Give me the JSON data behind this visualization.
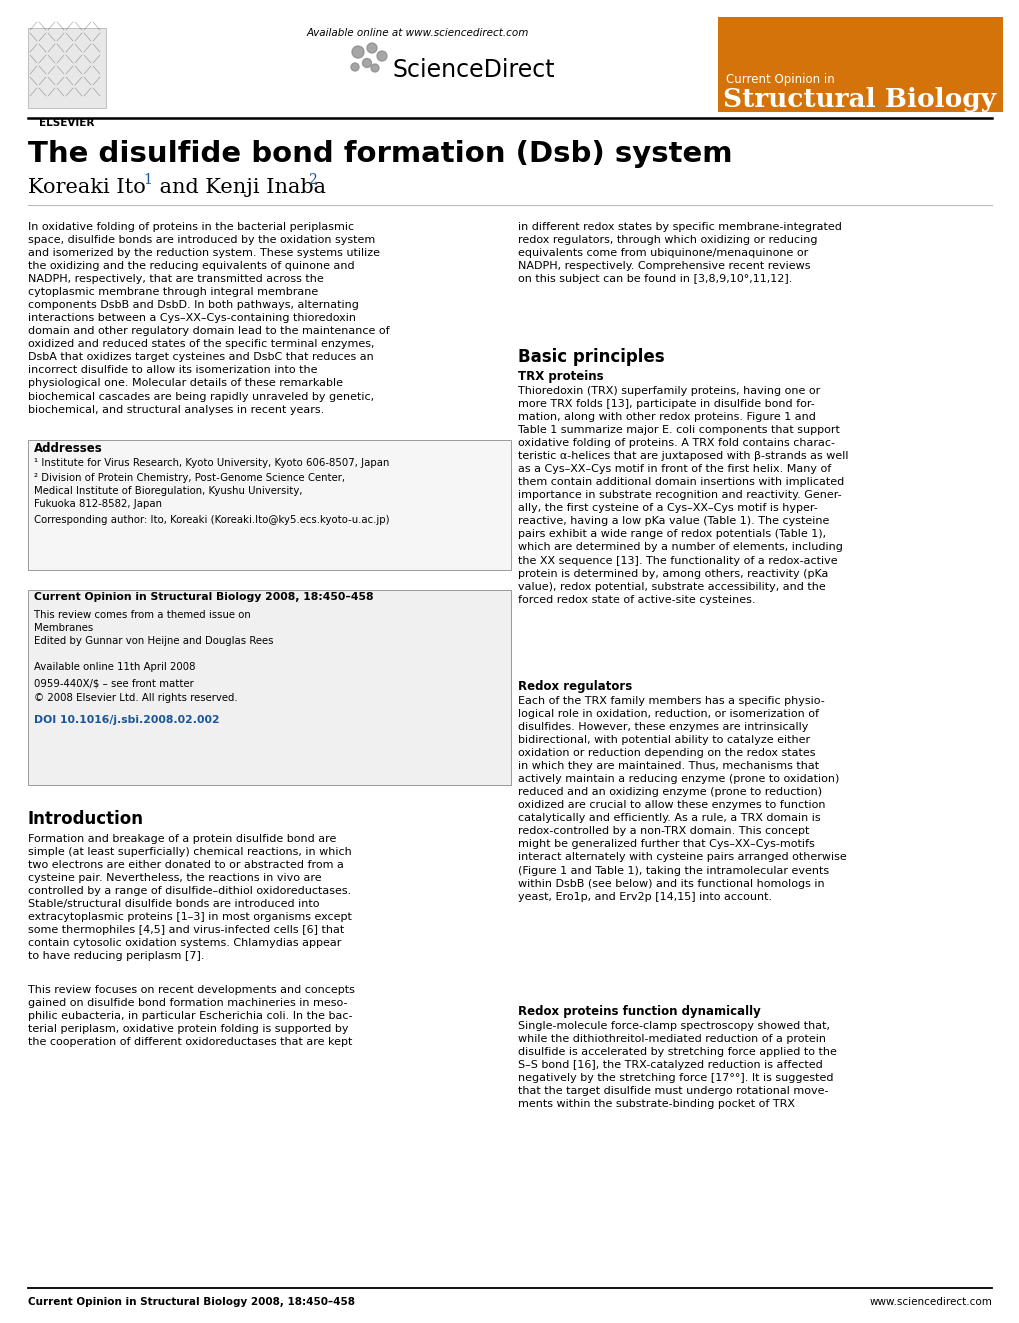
{
  "title": "The disulfide bond formation (Dsb) system",
  "authors": "Koreaki Ito  and Kenji Inaba",
  "bg_color": "#ffffff",
  "orange_color": "#d4730a",
  "journal_title_small": "Current Opinion in",
  "journal_title_large": "Structural Biology",
  "available_online": "Available online at www.sciencedirect.com",
  "elsevier_text": "ELSEVIER",
  "sciencedirect_text": "•ScienceDirect",
  "footer_left": "Current Opinion in Structural Biology 2008, 18:450–458",
  "footer_right": "www.sciencedirect.com",
  "abstract_text": "In oxidative folding of proteins in the bacterial periplasmic\nspace, disulfide bonds are introduced by the oxidation system\nand isomerized by the reduction system. These systems utilize\nthe oxidizing and the reducing equivalents of quinone and\nNADPH, respectively, that are transmitted across the\ncytoplasmic membrane through integral membrane\ncomponents DsbB and DsbD. In both pathways, alternating\ninteractions between a Cys–XX–Cys-containing thioredoxin\ndomain and other regulatory domain lead to the maintenance of\noxidized and reduced states of the specific terminal enzymes,\nDsbA that oxidizes target cysteines and DsbC that reduces an\nincorrect disulfide to allow its isomerization into the\nphysiological one. Molecular details of these remarkable\nbiochemical cascades are being rapidly unraveled by genetic,\nbiochemical, and structural analyses in recent years.",
  "right_col_intro": "in different redox states by specific membrane-integrated\nredox regulators, through which oxidizing or reducing\nequivalents come from ubiquinone/menaquinone or\nNADPH, respectively. Comprehensive recent reviews\non this subject can be found in [3,8,9,10°,11,12].",
  "addresses_header": "Addresses",
  "address1": "¹ Institute for Virus Research, Kyoto University, Kyoto 606-8507, Japan",
  "address2": "² Division of Protein Chemistry, Post-Genome Science Center,\nMedical Institute of Bioregulation, Kyushu University,\nFukuoka 812-8582, Japan",
  "corresponding": "Corresponding author: Ito, Koreaki (Koreaki.Ito@ky5.ecs.kyoto-u.ac.jp)",
  "info_box_line1": "Current Opinion in Structural Biology 2008, 18:450–458",
  "info_box_line2": "This review comes from a themed issue on\nMembranes\nEdited by Gunnar von Heijne and Douglas Rees",
  "info_box_line3": "Available online 11th April 2008",
  "info_box_line4": "0959-440X/$ – see front matter",
  "info_box_line5": "© 2008 Elsevier Ltd. All rights reserved.",
  "info_box_doi": "DOI 10.1016/j.sbi.2008.02.002",
  "intro_header": "Introduction",
  "intro_text": "Formation and breakage of a protein disulfide bond are\nsimple (at least superficially) chemical reactions, in which\ntwo electrons are either donated to or abstracted from a\ncysteine pair. Nevertheless, the reactions in vivo are\ncontrolled by a range of disulfide–dithiol oxidoreductases.\nStable/structural disulfide bonds are introduced into\nextracytoplasmic proteins [1–3] in most organisms except\nsome thermophiles [4,5] and virus-infected cells [6] that\ncontain cytosolic oxidation systems. Chlamydias appear\nto have reducing periplasm [7].",
  "intro_text2": "This review focuses on recent developments and concepts\ngained on disulfide bond formation machineries in meso-\nphilic eubacteria, in particular Escherichia coli. In the bac-\nterial periplasm, oxidative protein folding is supported by\nthe cooperation of different oxidoreductases that are kept",
  "basic_principles_header": "Basic principles",
  "trx_header": "TRX proteins",
  "trx_text": "Thioredoxin (TRX) superfamily proteins, having one or\nmore TRX folds [13], participate in disulfide bond for-\nmation, along with other redox proteins. Figure 1 and\nTable 1 summarize major E. coli components that support\noxidative folding of proteins. A TRX fold contains charac-\nteristic α-helices that are juxtaposed with β-strands as well\nas a Cys–XX–Cys motif in front of the first helix. Many of\nthem contain additional domain insertions with implicated\nimportance in substrate recognition and reactivity. Gener-\nally, the first cysteine of a Cys–XX–Cys motif is hyper-\nreactive, having a low pKa value (Table 1). The cysteine\npairs exhibit a wide range of redox potentials (Table 1),\nwhich are determined by a number of elements, including\nthe XX sequence [13]. The functionality of a redox-active\nprotein is determined by, among others, reactivity (pKa\nvalue), redox potential, substrate accessibility, and the\nforced redox state of active-site cysteines.",
  "redox_reg_header": "Redox regulators",
  "redox_reg_text": "Each of the TRX family members has a specific physio-\nlogical role in oxidation, reduction, or isomerization of\ndisulfides. However, these enzymes are intrinsically\nbidirectional, with potential ability to catalyze either\noxidation or reduction depending on the redox states\nin which they are maintained. Thus, mechanisms that\nactively maintain a reducing enzyme (prone to oxidation)\nreduced and an oxidizing enzyme (prone to reduction)\noxidized are crucial to allow these enzymes to function\ncatalytically and efficiently. As a rule, a TRX domain is\nredox-controlled by a non-TRX domain. This concept\nmight be generalized further that Cys–XX–Cys-motifs\ninteract alternately with cysteine pairs arranged otherwise\n(Figure 1 and Table 1), taking the intramolecular events\nwithin DsbB (see below) and its functional homologs in\nyeast, Ero1p, and Erv2p [14,15] into account.",
  "redox_dyn_header": "Redox proteins function dynamically",
  "redox_dyn_text": "Single-molecule force-clamp spectroscopy showed that,\nwhile the dithiothreitol-mediated reduction of a protein\ndisulfide is accelerated by stretching force applied to the\nS–S bond [16], the TRX-catalyzed reduction is affected\nnegatively by the stretching force [17°°]. It is suggested\nthat the target disulfide must undergo rotational move-\nments within the substrate-binding pocket of TRX"
}
